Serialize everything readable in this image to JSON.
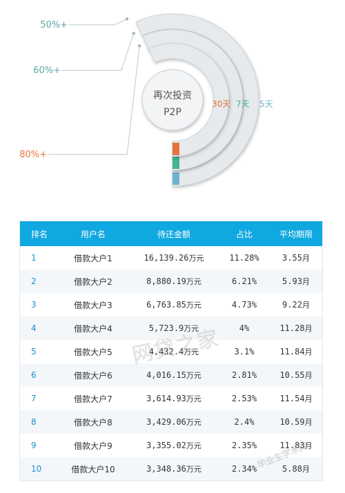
{
  "chart_data": {
    "type": "radial-bar",
    "center_label": [
      "再次投资",
      "P2P"
    ],
    "series": [
      {
        "label": "30天",
        "percent_label": "80%+",
        "color": "#e8733a"
      },
      {
        "label": "7天",
        "percent_label": "60%+",
        "color": "#44b596"
      },
      {
        "label": "5天",
        "percent_label": "50%+",
        "color": "#6fb3cc"
      }
    ]
  },
  "table": {
    "headers": [
      "排名",
      "用户名",
      "待还金额",
      "占比",
      "平均期限"
    ],
    "rows": [
      {
        "rank": "1",
        "name": "借款大户1",
        "amount": "16,139.26",
        "unit": "万元",
        "ratio": "11.28%",
        "term": "3.55",
        "term_unit": "月"
      },
      {
        "rank": "2",
        "name": "借款大户2",
        "amount": "8,880.19",
        "unit": "万元",
        "ratio": "6.21%",
        "term": "5.93",
        "term_unit": "月"
      },
      {
        "rank": "3",
        "name": "借款大户3",
        "amount": "6,763.85",
        "unit": "万元",
        "ratio": "4.73%",
        "term": "9.22",
        "term_unit": "月"
      },
      {
        "rank": "4",
        "name": "借款大户4",
        "amount": "5,723.9",
        "unit": "万元",
        "ratio": "4%",
        "term": "11.28",
        "term_unit": "月"
      },
      {
        "rank": "5",
        "name": "借款大户5",
        "amount": "4,432.4",
        "unit": "万元",
        "ratio": "3.1%",
        "term": "11.84",
        "term_unit": "月"
      },
      {
        "rank": "6",
        "name": "借款大户6",
        "amount": "4,016.15",
        "unit": "万元",
        "ratio": "2.81%",
        "term": "10.55",
        "term_unit": "月"
      },
      {
        "rank": "7",
        "name": "借款大户7",
        "amount": "3,614.93",
        "unit": "万元",
        "ratio": "2.53%",
        "term": "11.54",
        "term_unit": "月"
      },
      {
        "rank": "8",
        "name": "借款大户8",
        "amount": "3,429.06",
        "unit": "万元",
        "ratio": "2.4%",
        "term": "10.59",
        "term_unit": "月"
      },
      {
        "rank": "9",
        "name": "借款大户9",
        "amount": "3,355.02",
        "unit": "万元",
        "ratio": "2.35%",
        "term": "11.83",
        "term_unit": "月"
      },
      {
        "rank": "10",
        "name": "借款大户10",
        "amount": "3,348.36",
        "unit": "万元",
        "ratio": "2.34%",
        "term": "5.88",
        "term_unit": "月"
      }
    ]
  },
  "watermarks": [
    "网贷之家",
    "毕业生学术网"
  ]
}
